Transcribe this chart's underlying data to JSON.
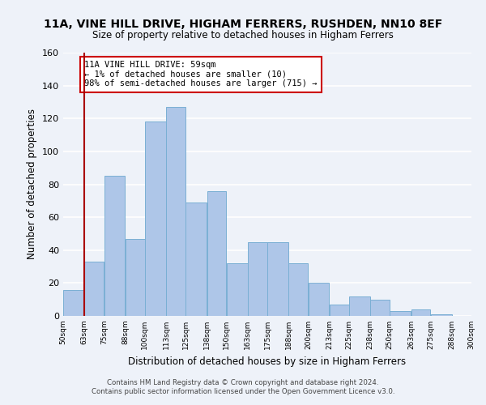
{
  "title": "11A, VINE HILL DRIVE, HIGHAM FERRERS, RUSHDEN, NN10 8EF",
  "subtitle": "Size of property relative to detached houses in Higham Ferrers",
  "xlabel": "Distribution of detached houses by size in Higham Ferrers",
  "ylabel": "Number of detached properties",
  "bar_edges": [
    50,
    63,
    75,
    88,
    100,
    113,
    125,
    138,
    150,
    163,
    175,
    188,
    200,
    213,
    225,
    238,
    250,
    263,
    275,
    288,
    300
  ],
  "bar_heights": [
    16,
    33,
    85,
    47,
    118,
    127,
    69,
    76,
    32,
    45,
    45,
    32,
    20,
    7,
    12,
    10,
    3,
    4,
    1,
    0
  ],
  "bar_color": "#aec6e8",
  "bar_edge_color": "#7aafd4",
  "red_line_x": 63,
  "annotation_box_text": "11A VINE HILL DRIVE: 59sqm\n← 1% of detached houses are smaller (10)\n98% of semi-detached houses are larger (715) →",
  "ylim": [
    0,
    160
  ],
  "yticks": [
    0,
    20,
    40,
    60,
    80,
    100,
    120,
    140,
    160
  ],
  "tick_labels": [
    "50sqm",
    "63sqm",
    "75sqm",
    "88sqm",
    "100sqm",
    "113sqm",
    "125sqm",
    "138sqm",
    "150sqm",
    "163sqm",
    "175sqm",
    "188sqm",
    "200sqm",
    "213sqm",
    "225sqm",
    "238sqm",
    "250sqm",
    "263sqm",
    "275sqm",
    "288sqm",
    "300sqm"
  ],
  "footer_line1": "Contains HM Land Registry data © Crown copyright and database right 2024.",
  "footer_line2": "Contains public sector information licensed under the Open Government Licence v3.0.",
  "bg_color": "#eef2f9",
  "grid_color": "#ffffff"
}
